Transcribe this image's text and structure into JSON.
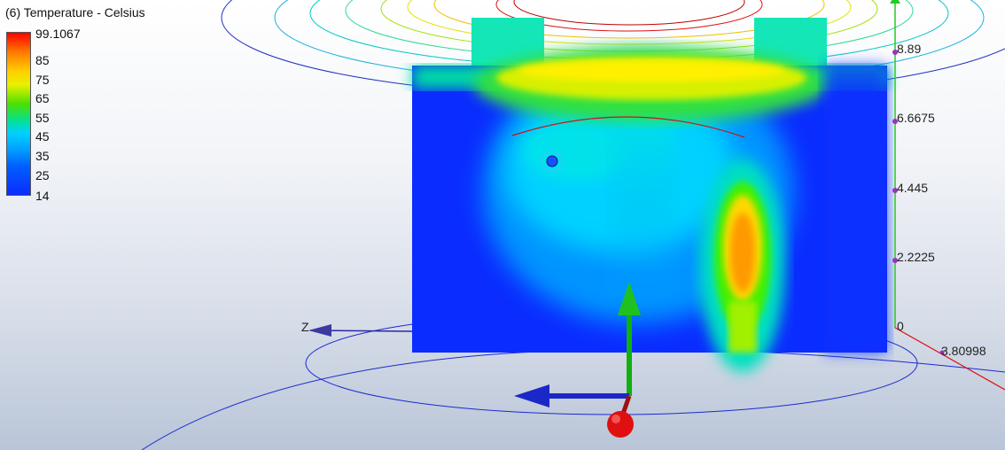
{
  "legend": {
    "title": "(6) Temperature - Celsius",
    "ticks": [
      "99.1067",
      "85",
      "75",
      "65",
      "55",
      "45",
      "35",
      "25",
      "14"
    ]
  },
  "axis": {
    "y_ticks": [
      "8.89",
      "6.6675",
      "4.445",
      "2.2225",
      "0"
    ],
    "z_label": "Z",
    "radial_value": "3.80998"
  },
  "colors": {
    "hot": "#ff7a00",
    "warm": "#ffe600",
    "mid": "#00e6c8",
    "cool": "#0a2cff",
    "axis_y": "#22cc22",
    "axis_x": "#e00000",
    "axis_z": "#1a28c8"
  }
}
